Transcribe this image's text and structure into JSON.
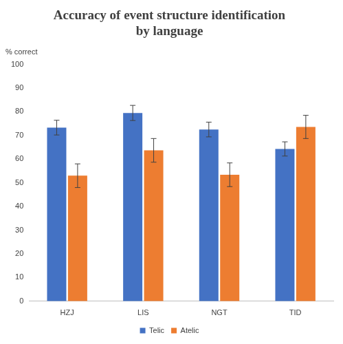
{
  "chart_data": {
    "type": "bar",
    "title": [
      "Accuracy of event structure identification",
      "by language"
    ],
    "y_label": "% correct",
    "categories": [
      "HZJ",
      "LIS",
      "NGT",
      "TID"
    ],
    "series": [
      {
        "name": "Telic",
        "color": "#4472c4",
        "values": [
          73.3,
          79.5,
          72.5,
          64.3
        ],
        "errors": [
          3.1,
          3.2,
          3.1,
          3.0
        ]
      },
      {
        "name": "Atelic",
        "color": "#ed7d31",
        "values": [
          53.0,
          63.7,
          53.4,
          73.6
        ],
        "errors": [
          5.0,
          5.0,
          5.0,
          4.9
        ]
      }
    ],
    "ylim": [
      0,
      100
    ],
    "yticks": [
      0,
      10,
      20,
      30,
      40,
      50,
      60,
      70,
      80,
      90,
      100
    ],
    "grid": false,
    "legend": "bottom"
  }
}
